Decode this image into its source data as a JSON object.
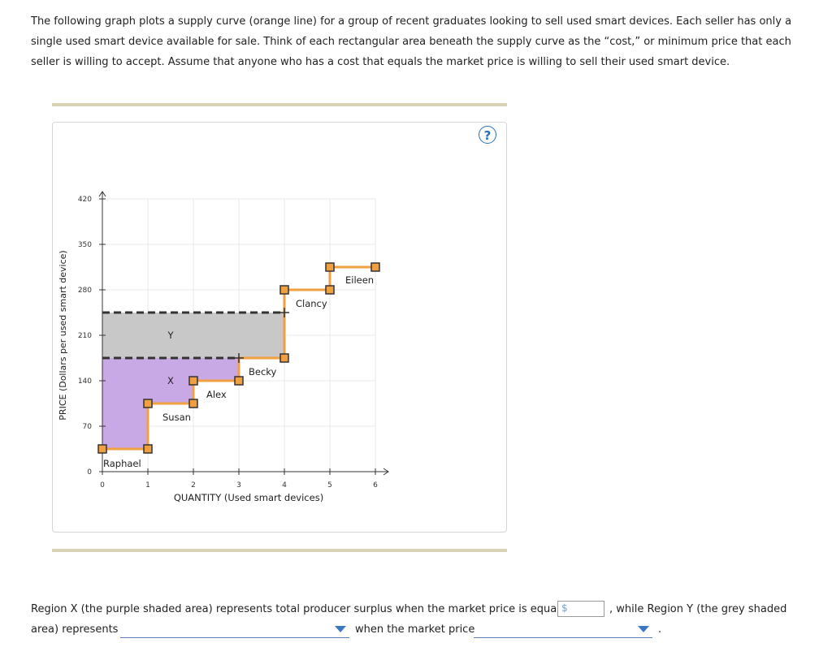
{
  "intro_text": "The following graph plots a supply curve (orange line) for a group of recent graduates looking to sell used smart devices. Each seller has only a single used smart device available for sale. Think of each rectangular area beneath the supply curve as the “cost,” or minimum price that each seller is willing to accept. Assume that anyone who has a cost that equals the market price is willing to sell their used smart device.",
  "help_label": "?",
  "question": {
    "part1": "Region X (the purple shaded area) represents total producer surplus when the market price is equal to",
    "currency": "$",
    "part2": ", while Region Y (the grey shaded",
    "part3": "area) represents",
    "part4": "when the market price",
    "part5": "."
  },
  "colors": {
    "supply_line": "#f0a040",
    "marker_fill": "#f0a040",
    "marker_stroke": "#333333",
    "region_x": "#c9a8e6",
    "region_y": "#c8c8c8",
    "dashed_line": "#333333",
    "grid": "#e8e8e8",
    "help": "#2a6fb5"
  },
  "chart_data": {
    "type": "line",
    "xlabel": "QUANTITY (Used smart devices)",
    "ylabel": "PRICE (Dollars per used smart device)",
    "xlim": [
      0,
      6
    ],
    "ylim": [
      0,
      420
    ],
    "x_ticks": [
      0,
      1,
      2,
      3,
      4,
      5,
      6
    ],
    "y_ticks": [
      0,
      70,
      140,
      210,
      280,
      350,
      420
    ],
    "supply_curve": {
      "points": [
        [
          0,
          35
        ],
        [
          1,
          35
        ],
        [
          1,
          105
        ],
        [
          2,
          105
        ],
        [
          2,
          140
        ],
        [
          3,
          140
        ],
        [
          3,
          175
        ],
        [
          4,
          175
        ],
        [
          4,
          280
        ],
        [
          5,
          280
        ],
        [
          5,
          315
        ],
        [
          6,
          315
        ]
      ],
      "markers": [
        [
          0,
          35
        ],
        [
          1,
          35
        ],
        [
          1,
          105
        ],
        [
          2,
          105
        ],
        [
          2,
          140
        ],
        [
          3,
          140
        ],
        [
          4,
          175
        ],
        [
          4,
          280
        ],
        [
          5,
          280
        ],
        [
          5,
          315
        ],
        [
          6,
          315
        ]
      ]
    },
    "sellers": [
      {
        "name": "Raphael",
        "x": 0.5,
        "y": 35
      },
      {
        "name": "Susan",
        "x": 1.5,
        "y": 105
      },
      {
        "name": "Alex",
        "x": 2.5,
        "y": 140
      },
      {
        "name": "Becky",
        "x": 3.5,
        "y": 175
      },
      {
        "name": "Clancy",
        "x": 4.5,
        "y": 280
      },
      {
        "name": "Eileen",
        "x": 5.5,
        "y": 315
      }
    ],
    "price_lines": [
      175,
      245
    ],
    "regions": [
      {
        "name": "X",
        "points": [
          [
            0,
            175
          ],
          [
            3,
            175
          ],
          [
            3,
            140
          ],
          [
            2,
            140
          ],
          [
            2,
            105
          ],
          [
            1,
            105
          ],
          [
            1,
            35
          ],
          [
            0,
            35
          ]
        ]
      },
      {
        "name": "Y",
        "points": [
          [
            0,
            245
          ],
          [
            4,
            245
          ],
          [
            4,
            175
          ],
          [
            0,
            175
          ]
        ]
      }
    ],
    "crosshair_markers": [
      [
        3,
        175
      ],
      [
        4,
        245
      ]
    ]
  }
}
